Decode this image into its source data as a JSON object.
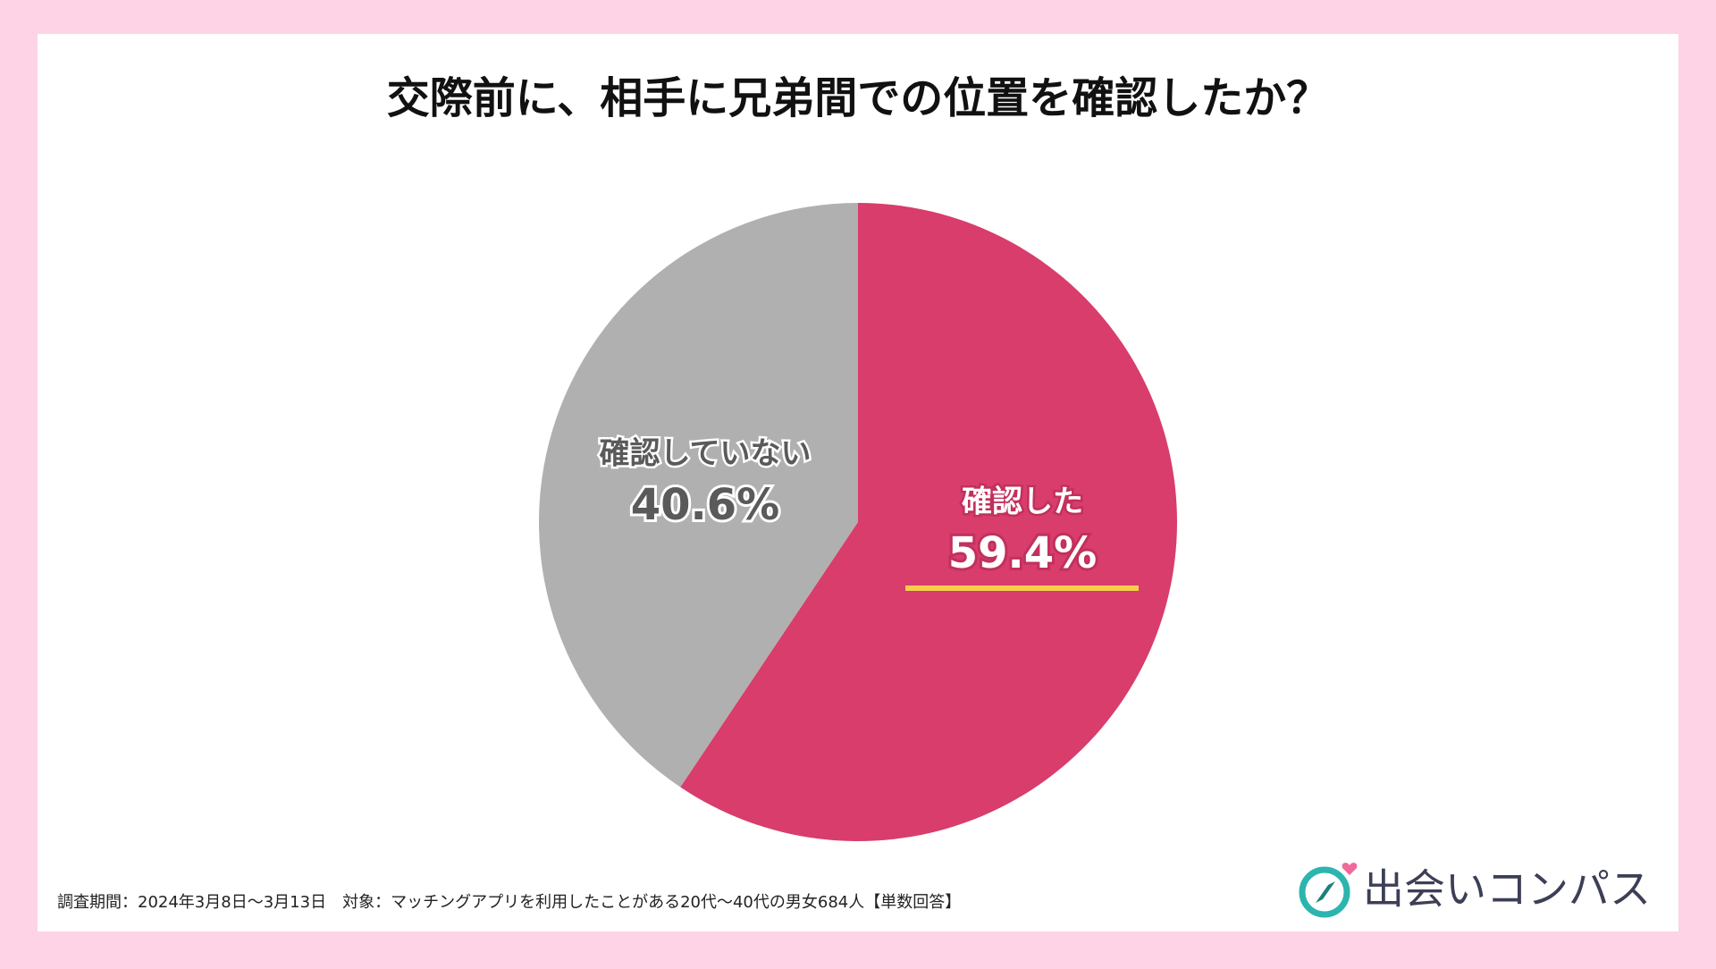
{
  "chart_data": {
    "type": "pie",
    "title": "交際前に、相手に兄弟間での位置を確認したか？",
    "categories": [
      "確認した",
      "確認していない"
    ],
    "values": [
      59.4,
      40.6
    ],
    "value_labels": [
      "59.4%",
      "40.6%"
    ],
    "colors": [
      "#d83d6c",
      "#b0b0b0"
    ],
    "footnote": "調査期間：2024年3月8日〜3月13日　対象：マッチングアプリを利用したことがある20代〜40代の男女684人【単数回答】"
  },
  "brand": "出会いコンパス"
}
